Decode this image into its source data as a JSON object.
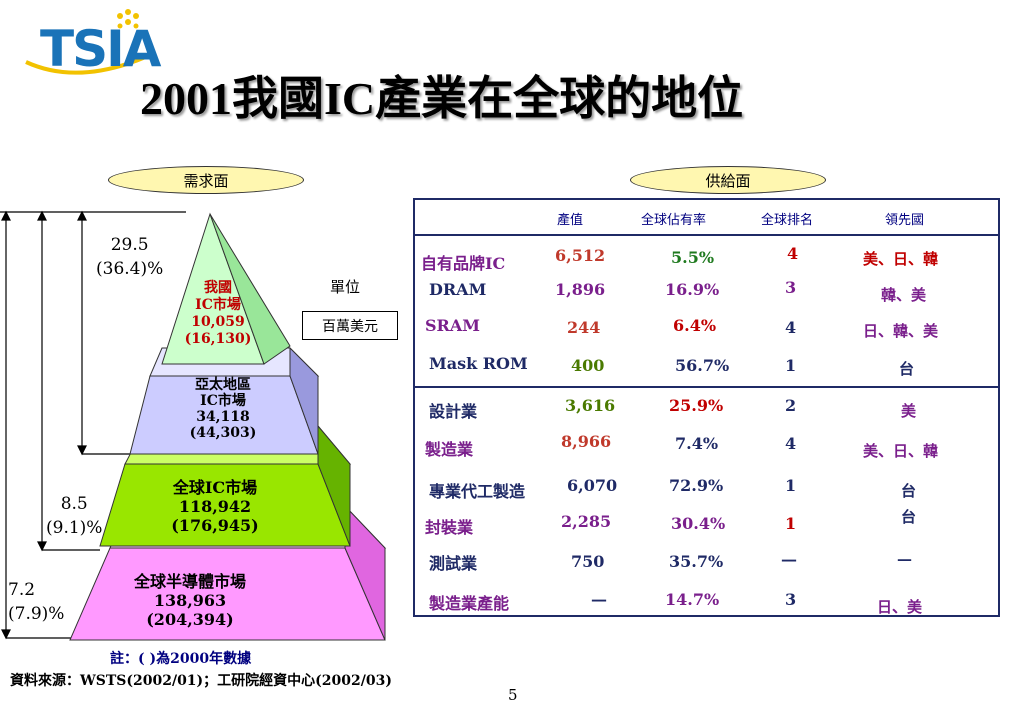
{
  "logo": {
    "text": "TSIA"
  },
  "title": "2001我國IC產業在全球的地位",
  "demand_label": "需求面",
  "supply_label": "供給面",
  "pyramid": {
    "tier1": {
      "line1": "我國",
      "line2": "IC市場",
      "line3": "10,059",
      "line4": "(16,130)"
    },
    "tier2": {
      "line1": "亞太地區",
      "line2": "IC市場",
      "line3": "34,118",
      "line4": "(44,303)"
    },
    "tier3": {
      "line1": "全球IC市場",
      "line2": "118,942",
      "line3": "(176,945)"
    },
    "tier4": {
      "line1": "全球半導體市場",
      "line2": "138,963",
      "line3": "(204,394)"
    },
    "side1": {
      "value": "29.5",
      "pct": "(36.4)%"
    },
    "side2": {
      "value": "8.5",
      "pct": "(9.1)%"
    },
    "side3": {
      "value": "7.2",
      "pct": "(7.9)%"
    },
    "unit_label": "單位",
    "unit_value": "百萬美元"
  },
  "table": {
    "headers": [
      "產值",
      "全球佔有率",
      "全球排名",
      "領先國"
    ],
    "rows": [
      {
        "name": "自有品牌IC",
        "value": "6,512",
        "share": "5.5%",
        "rank": "4",
        "leader": "美、日、韓"
      },
      {
        "name": "DRAM",
        "value": "1,896",
        "share": "16.9%",
        "rank": "3",
        "leader": "韓、美"
      },
      {
        "name": "SRAM",
        "value": "244",
        "share": "6.4%",
        "rank": "4",
        "leader": "日、韓、美"
      },
      {
        "name": "Mask ROM",
        "value": "400",
        "share": "56.7%",
        "rank": "1",
        "leader": "台"
      },
      {
        "name": "設計業",
        "value": "3,616",
        "share": "25.9%",
        "rank": "2",
        "leader": "美"
      },
      {
        "name": "製造業",
        "value": "8,966",
        "share": "7.4%",
        "rank": "4",
        "leader": "美、日、韓"
      },
      {
        "name": "專業代工製造",
        "value": "6,070",
        "share": "72.9%",
        "rank": "1",
        "leader": "台"
      },
      {
        "name": "封裝業",
        "value": "2,285",
        "share": "30.4%",
        "rank": "1",
        "leader": "台"
      },
      {
        "name": "測試業",
        "value": "750",
        "share": "35.7%",
        "rank": "—",
        "leader": "—"
      },
      {
        "name": "製造業產能",
        "value": "—",
        "share": "14.7%",
        "rank": "3",
        "leader": "日、美"
      }
    ]
  },
  "note": "註：( )為2000年數據",
  "source": "資料來源：WSTS(2002/01)；工研院經資中心(2002/03)",
  "page_number": "5"
}
